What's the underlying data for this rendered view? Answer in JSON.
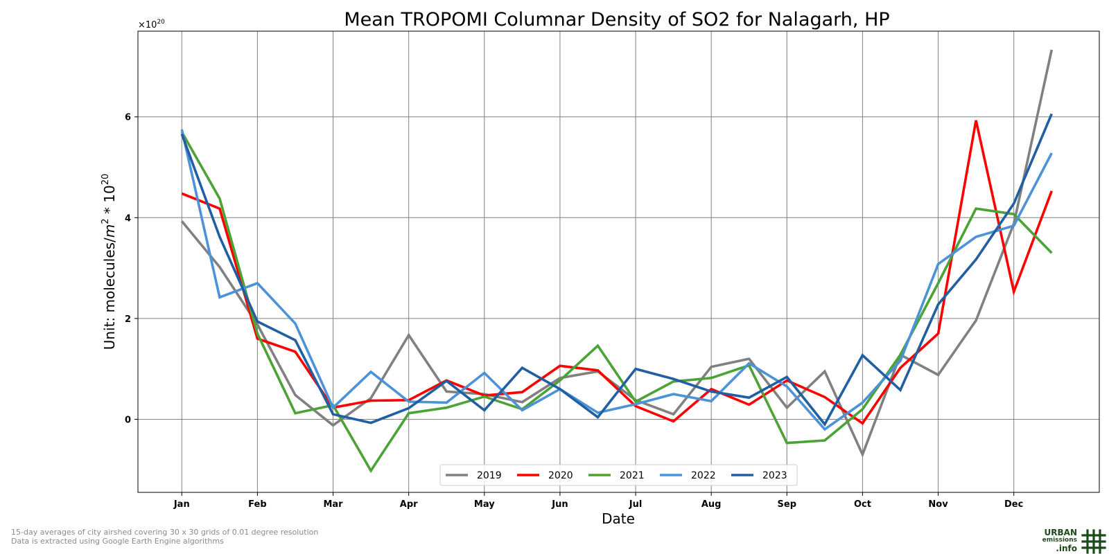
{
  "chart_data": {
    "type": "line",
    "title": "Mean TROPOMI Columnar Density of SO2 for Nalagarh, HP",
    "xlabel": "Date",
    "ylabel": "Unit: molecules/",
    "ylabel_units": {
      "m": "m",
      "sq": "2",
      "times": " * 10",
      "exp": "20"
    },
    "offset_text": {
      "base": "×10",
      "exp": "20"
    },
    "x_tick_labels": [
      "Jan",
      "Feb",
      "Mar",
      "Apr",
      "May",
      "Jun",
      "Jul",
      "Aug",
      "Sep",
      "Oct",
      "Nov",
      "Dec"
    ],
    "y_ticks": [
      0,
      2,
      4,
      6
    ],
    "ylim": [
      -1.45,
      7.7
    ],
    "xlim": [
      -0.58,
      12.13
    ],
    "grid": true,
    "legend_position": "lower center",
    "x": [
      0,
      0.5,
      1,
      1.5,
      2,
      2.5,
      3,
      3.5,
      4,
      4.5,
      5,
      5.5,
      6,
      6.5,
      7,
      7.5,
      8,
      8.5,
      9,
      9.5,
      10,
      10.5,
      11,
      11.5
    ],
    "series": [
      {
        "name": "2019",
        "color": "#808080",
        "values": [
          3.93,
          3.02,
          1.88,
          0.48,
          -0.12,
          0.42,
          1.67,
          0.55,
          0.5,
          0.34,
          0.82,
          0.95,
          0.38,
          0.1,
          1.04,
          1.2,
          0.23,
          0.95,
          -0.7,
          1.28,
          0.88,
          1.96,
          3.88,
          7.33
        ]
      },
      {
        "name": "2020",
        "color": "#ff0000",
        "values": [
          4.48,
          4.18,
          1.6,
          1.34,
          0.23,
          0.37,
          0.38,
          0.77,
          0.47,
          0.54,
          1.06,
          0.97,
          0.26,
          -0.04,
          0.6,
          0.29,
          0.77,
          0.44,
          -0.08,
          1.02,
          1.7,
          5.93,
          2.53,
          4.53
        ]
      },
      {
        "name": "2021",
        "color": "#4aa334",
        "values": [
          5.7,
          4.38,
          1.7,
          0.12,
          0.28,
          -1.02,
          0.12,
          0.23,
          0.45,
          0.2,
          0.77,
          1.46,
          0.35,
          0.75,
          0.82,
          1.07,
          -0.47,
          -0.42,
          0.2,
          1.28,
          2.7,
          4.18,
          4.07,
          3.3
        ]
      },
      {
        "name": "2022",
        "color": "#4b92d8",
        "values": [
          5.75,
          2.42,
          2.7,
          1.9,
          0.23,
          0.94,
          0.35,
          0.33,
          0.92,
          0.18,
          0.6,
          0.13,
          0.3,
          0.5,
          0.36,
          1.11,
          0.65,
          -0.2,
          0.33,
          1.16,
          3.08,
          3.62,
          3.84,
          5.28
        ]
      },
      {
        "name": "2023",
        "color": "#205fa2",
        "values": [
          5.66,
          3.62,
          1.94,
          1.57,
          0.1,
          -0.07,
          0.22,
          0.76,
          0.18,
          1.02,
          0.6,
          0.04,
          1.0,
          0.8,
          0.55,
          0.43,
          0.84,
          -0.1,
          1.27,
          0.58,
          2.28,
          3.17,
          4.28,
          6.06
        ]
      }
    ]
  },
  "footnotes": {
    "line1": "15-day averages of city airshed covering 30 x 30 grids of 0.01 degree resolution",
    "line2": "Data is extracted using Google Earth Engine algorithms"
  },
  "logo": {
    "line1": "URBAN",
    "line2": "emissions",
    "line3": ".info",
    "color": "#1c4a1c"
  }
}
